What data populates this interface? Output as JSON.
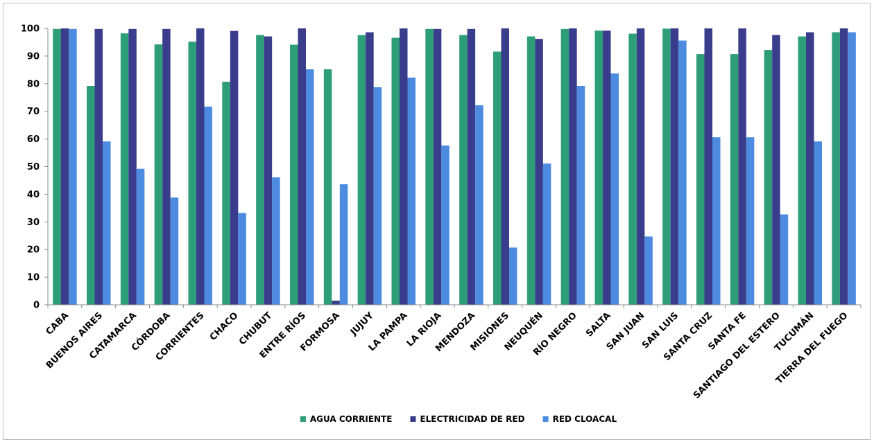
{
  "chart_data": {
    "type": "bar",
    "title": "",
    "xlabel": "",
    "ylabel": "",
    "ylim": [
      0,
      100
    ],
    "yticks": [
      0,
      10,
      20,
      30,
      40,
      50,
      60,
      70,
      80,
      90,
      100
    ],
    "grid": false,
    "legend_position": "bottom",
    "categories": [
      "CABA",
      "BUENOS AIRES",
      "CATAMARCA",
      "CÓRDOBA",
      "CORRIENTES",
      "CHACO",
      "CHUBUT",
      "ENTRE RÍOS",
      "FORMOSA",
      "JUJUY",
      "LA PAMPA",
      "LA RIOJA",
      "MENDOZA",
      "MISIONES",
      "NEUQUÉN",
      "RÍO NEGRO",
      "SALTA",
      "SAN JUAN",
      "SAN LUIS",
      "SANTA CRUZ",
      "SANTA FE",
      "SANTIAGO DEL ESTERO",
      "TUCUMÁN",
      "TIERRA DEL FUEGO"
    ],
    "series": [
      {
        "name": "AGUA CORRIENTE",
        "color": "#2e9e78",
        "values": [
          99.8,
          79.2,
          98.2,
          94.2,
          95.2,
          80.7,
          97.6,
          94.1,
          85.2,
          97.6,
          96.6,
          99.8,
          97.6,
          91.6,
          97.1,
          99.8,
          99.2,
          98.1,
          99.9,
          90.7,
          90.7,
          92.2,
          97.1,
          98.6
        ]
      },
      {
        "name": "ELECTRICIDAD DE RED",
        "color": "#3a3d8c",
        "values": [
          100,
          99.8,
          99.8,
          99.8,
          100,
          99.1,
          97.1,
          100,
          1.5,
          98.6,
          100,
          99.8,
          99.8,
          100,
          96.2,
          100,
          99.2,
          100,
          100,
          100,
          100,
          97.6,
          98.6,
          100
        ]
      },
      {
        "name": "RED CLOACAL",
        "color": "#4c8be0",
        "values": [
          99.8,
          59.1,
          49.2,
          38.8,
          71.7,
          33.2,
          46.1,
          85.2,
          43.6,
          78.7,
          82.2,
          57.6,
          72.2,
          20.7,
          51.1,
          79.2,
          83.7,
          24.7,
          95.6,
          60.6,
          60.6,
          32.7,
          59.1,
          98.6
        ]
      }
    ]
  }
}
